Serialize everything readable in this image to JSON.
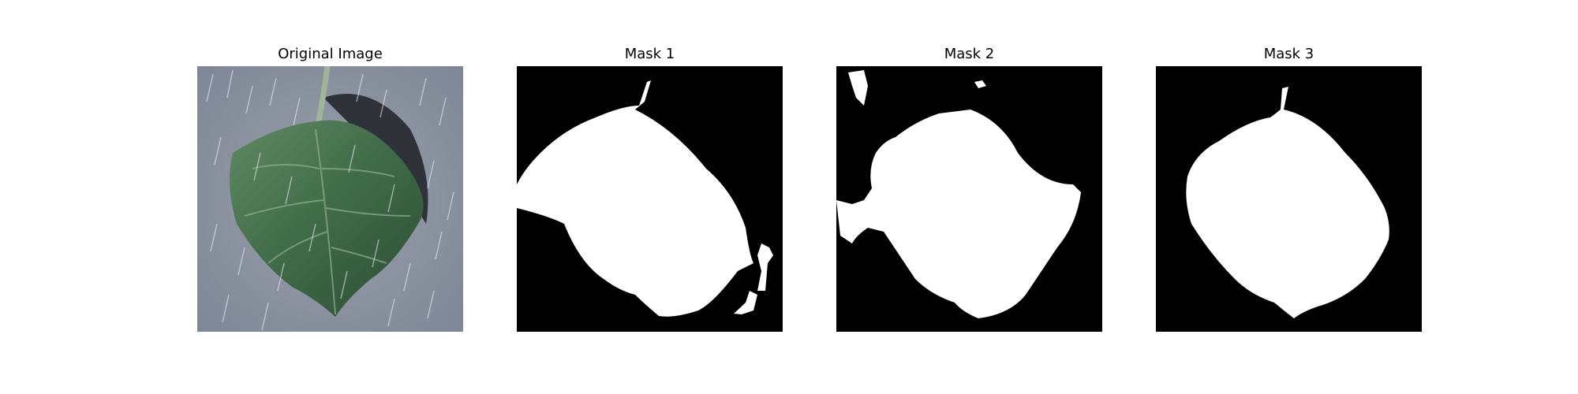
{
  "figure": {
    "panels": [
      {
        "title": "Original Image",
        "kind": "photo",
        "subject": "leaf"
      },
      {
        "title": "Mask 1",
        "kind": "binary-mask"
      },
      {
        "title": "Mask 2",
        "kind": "binary-mask"
      },
      {
        "title": "Mask 3",
        "kind": "binary-mask"
      }
    ]
  },
  "colors": {
    "mask_background": "#000000",
    "mask_foreground": "#ffffff",
    "photo_background": "#8f96a3",
    "leaf_green": "#3f6a47"
  }
}
